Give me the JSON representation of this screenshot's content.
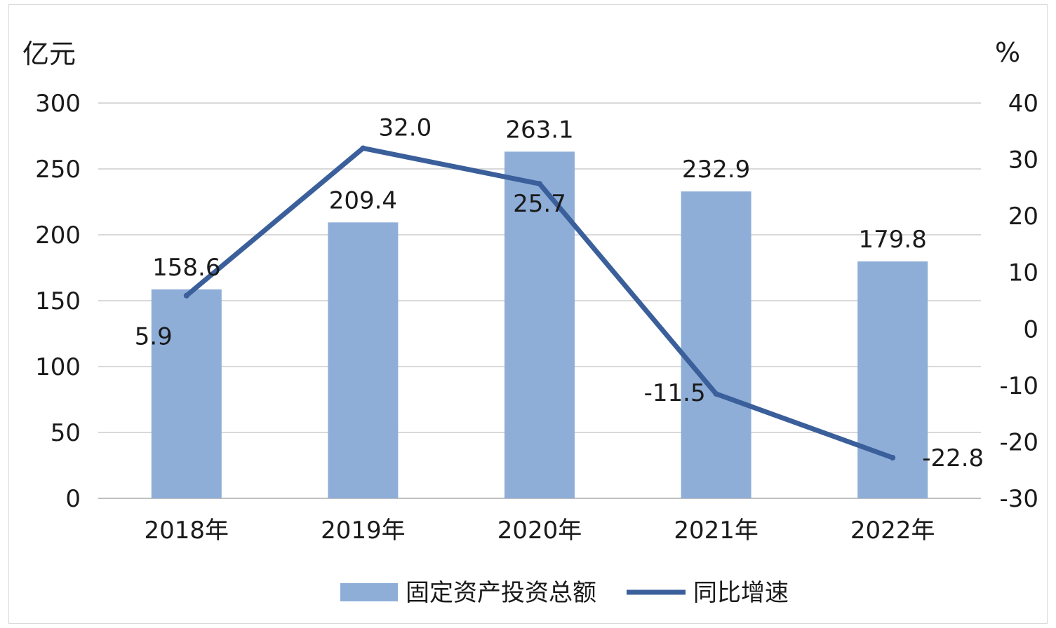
{
  "chart_data": {
    "type": "bar",
    "categories": [
      "2018年",
      "2019年",
      "2020年",
      "2021年",
      "2022年"
    ],
    "series": [
      {
        "name": "固定资产投资总额",
        "type": "bar",
        "axis": "left",
        "color": "#8eaed8",
        "values": [
          158.6,
          209.4,
          263.1,
          232.9,
          179.8
        ]
      },
      {
        "name": "同比增速",
        "type": "line",
        "axis": "right",
        "color": "#3a5f9a",
        "values": [
          5.9,
          32.0,
          25.7,
          -11.5,
          -22.8
        ]
      }
    ],
    "y_left": {
      "unit": "亿元",
      "range": [
        0,
        300
      ],
      "ticks": [
        "0",
        "50",
        "100",
        "150",
        "200",
        "250",
        "300"
      ]
    },
    "y_right": {
      "unit": "%",
      "range": [
        -30,
        40
      ],
      "ticks": [
        "-30",
        "-20",
        "-10",
        "0",
        "10",
        "20",
        "30",
        "40"
      ]
    },
    "bar_labels": [
      "158.6",
      "209.4",
      "263.1",
      "232.9",
      "179.8"
    ],
    "line_labels": [
      "5.9",
      "32.0",
      "25.7",
      "-11.5",
      "-22.8"
    ],
    "grid": true,
    "legend_position": "bottom"
  }
}
